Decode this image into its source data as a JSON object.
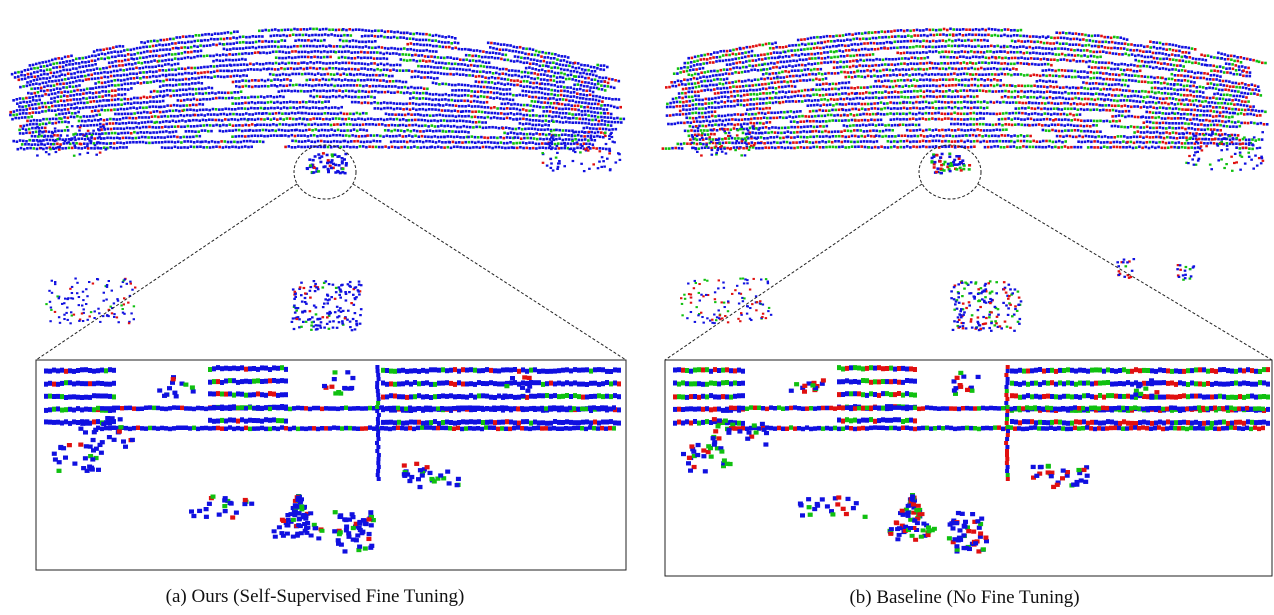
{
  "figure": {
    "panels": [
      {
        "id": "a",
        "caption": "(a) Ours (Self-Supervised Fine Tuning)",
        "point_colors": [
          "#1010e0",
          "#10c010",
          "#e01010"
        ],
        "color_mix": {
          "blue": 0.78,
          "green": 0.12,
          "red": 0.1
        }
      },
      {
        "id": "b",
        "caption": "(b) Baseline (No Fine Tuning)",
        "point_colors": [
          "#1010e0",
          "#10c010",
          "#e01010"
        ],
        "color_mix": {
          "blue": 0.55,
          "green": 0.22,
          "red": 0.23
        }
      }
    ]
  }
}
